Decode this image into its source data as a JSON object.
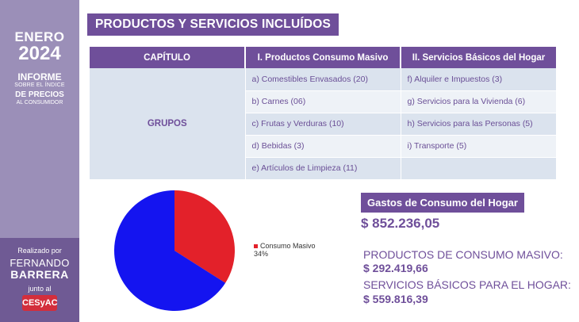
{
  "sidebar": {
    "month": "ENERO",
    "year": "2024",
    "informe": "INFORME",
    "line2": "SOBRE EL ÍNDICE",
    "line3": "DE PRECIOS",
    "line4": "AL CONSUMIDOR",
    "realizado": "Realizado por",
    "name_first": "FERNANDO",
    "name_last": "BARRERA",
    "junto": "junto al",
    "logo": "CESyAC"
  },
  "title": "PRODUCTOS Y SERVICIOS INCLUÍDOS",
  "table": {
    "headers": [
      "CAPÍTULO",
      "I. Productos Consumo Masivo",
      "II. Servicios Básicos del Hogar"
    ],
    "row_label": "GRUPOS",
    "rows": [
      [
        "a) Comestibles Envasados (20)",
        "f) Alquiler e Impuestos (3)"
      ],
      [
        "b) Carnes (06)",
        "g) Servicios para la Vivienda (6)"
      ],
      [
        "c) Frutas y Verduras (10)",
        "h) Servicios para las Personas (5)"
      ],
      [
        "d) Bebidas (3)",
        "i) Transporte (5)"
      ],
      [
        "e) Artículos de Limpieza (11)",
        ""
      ]
    ]
  },
  "chart_data": {
    "type": "pie",
    "slices": [
      {
        "label": "Consumo Masivo",
        "value": 34,
        "color": "#e3212a"
      },
      {
        "label": "",
        "value": 66,
        "color": "#1414f0"
      }
    ],
    "legend": [
      {
        "label": "Consumo Masivo",
        "pct": "34%"
      }
    ]
  },
  "gastos": {
    "title": "Gastos de Consumo del Hogar",
    "total": "$ 852.236,05",
    "masivo_label": "PRODUCTOS DE CONSUMO MASIVO:",
    "masivo_value": "$ 292.419,66",
    "basicos_label": "SERVICIOS BÁSICOS PARA EL HOGAR:",
    "basicos_value": "$ 559.816,39"
  },
  "colors": {
    "accent": "#6f4f9a",
    "sidebar": "#9b8fb8",
    "sidebar_dark": "#6f5a94",
    "row_a": "#dbe3ee",
    "row_b": "#eef2f7"
  }
}
